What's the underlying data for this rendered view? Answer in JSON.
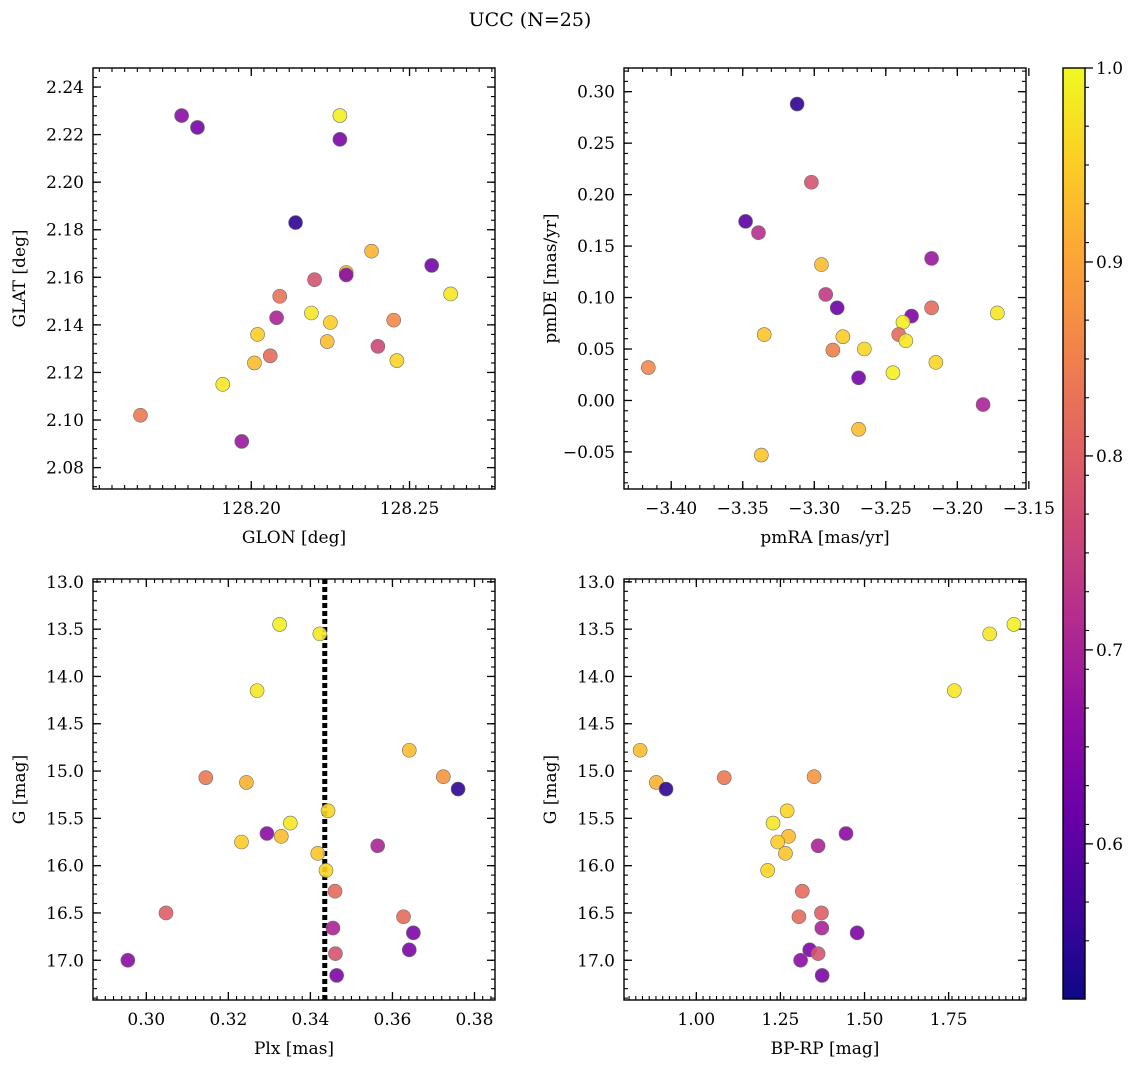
{
  "figure_title": "UCC (N=25)",
  "colorbar": {
    "vmin": 0.52,
    "vmax": 1.0,
    "ticks": [
      0.6,
      0.7,
      0.8,
      0.9,
      1.0
    ],
    "tick_labels": [
      "0.6",
      "0.7",
      "0.8",
      "0.9",
      "1.0"
    ],
    "colormap": "plasma"
  },
  "chart_data": [
    {
      "type": "scatter",
      "xlabel": "GLON [deg]",
      "ylabel": "GLAT [deg]",
      "xlim": [
        128.15,
        128.277
      ],
      "ylim": [
        2.071,
        2.248
      ],
      "xticks": [
        128.2,
        128.25
      ],
      "xtick_labels": [
        "128.20",
        "128.25"
      ],
      "yticks": [
        2.08,
        2.1,
        2.12,
        2.14,
        2.16,
        2.18,
        2.2,
        2.22,
        2.24
      ],
      "ytick_labels": [
        "2.08",
        "2.10",
        "2.12",
        "2.14",
        "2.16",
        "2.18",
        "2.20",
        "2.22",
        "2.24"
      ],
      "points": [
        {
          "x": 128.228,
          "y": 2.228,
          "c": 0.99
        },
        {
          "x": 128.178,
          "y": 2.228,
          "c": 0.66
        },
        {
          "x": 128.183,
          "y": 2.223,
          "c": 0.63
        },
        {
          "x": 128.228,
          "y": 2.218,
          "c": 0.64
        },
        {
          "x": 128.214,
          "y": 2.183,
          "c": 0.55
        },
        {
          "x": 128.238,
          "y": 2.171,
          "c": 0.92
        },
        {
          "x": 128.257,
          "y": 2.165,
          "c": 0.63
        },
        {
          "x": 128.23,
          "y": 2.162,
          "c": 0.93
        },
        {
          "x": 128.23,
          "y": 2.161,
          "c": 0.66
        },
        {
          "x": 128.22,
          "y": 2.159,
          "c": 0.78
        },
        {
          "x": 128.263,
          "y": 2.153,
          "c": 0.98
        },
        {
          "x": 128.209,
          "y": 2.152,
          "c": 0.83
        },
        {
          "x": 128.219,
          "y": 2.145,
          "c": 0.98
        },
        {
          "x": 128.208,
          "y": 2.143,
          "c": 0.7
        },
        {
          "x": 128.245,
          "y": 2.142,
          "c": 0.86
        },
        {
          "x": 128.225,
          "y": 2.141,
          "c": 0.95
        },
        {
          "x": 128.202,
          "y": 2.136,
          "c": 0.95
        },
        {
          "x": 128.224,
          "y": 2.133,
          "c": 0.93
        },
        {
          "x": 128.24,
          "y": 2.131,
          "c": 0.76
        },
        {
          "x": 128.206,
          "y": 2.127,
          "c": 0.82
        },
        {
          "x": 128.246,
          "y": 2.125,
          "c": 0.96
        },
        {
          "x": 128.201,
          "y": 2.124,
          "c": 0.93
        },
        {
          "x": 128.191,
          "y": 2.115,
          "c": 0.98
        },
        {
          "x": 128.165,
          "y": 2.102,
          "c": 0.84
        },
        {
          "x": 128.197,
          "y": 2.091,
          "c": 0.68
        }
      ]
    },
    {
      "type": "scatter",
      "xlabel": "pmRA [mas/yr]",
      "ylabel": "pmDE [mas/yr]",
      "xlim": [
        -3.433,
        -3.152
      ],
      "ylim": [
        -0.086,
        0.323
      ],
      "xticks": [
        -3.4,
        -3.35,
        -3.3,
        -3.25,
        -3.2,
        -3.15
      ],
      "xtick_labels": [
        "−3.40",
        "−3.35",
        "−3.30",
        "−3.25",
        "−3.20",
        "−3.15"
      ],
      "yticks": [
        -0.05,
        0.0,
        0.05,
        0.1,
        0.15,
        0.2,
        0.25,
        0.3
      ],
      "ytick_labels": [
        "−0.05",
        "0.00",
        "0.05",
        "0.10",
        "0.15",
        "0.20",
        "0.25",
        "0.30"
      ],
      "points": [
        {
          "x": -3.312,
          "y": 0.288,
          "c": 0.55
        },
        {
          "x": -3.302,
          "y": 0.212,
          "c": 0.78
        },
        {
          "x": -3.348,
          "y": 0.174,
          "c": 0.6
        },
        {
          "x": -3.339,
          "y": 0.163,
          "c": 0.72
        },
        {
          "x": -3.218,
          "y": 0.138,
          "c": 0.68
        },
        {
          "x": -3.295,
          "y": 0.132,
          "c": 0.93
        },
        {
          "x": -3.292,
          "y": 0.103,
          "c": 0.74
        },
        {
          "x": -3.218,
          "y": 0.09,
          "c": 0.82
        },
        {
          "x": -3.284,
          "y": 0.09,
          "c": 0.62
        },
        {
          "x": -3.172,
          "y": 0.085,
          "c": 0.98
        },
        {
          "x": -3.232,
          "y": 0.082,
          "c": 0.64
        },
        {
          "x": -3.238,
          "y": 0.076,
          "c": 0.99
        },
        {
          "x": -3.335,
          "y": 0.064,
          "c": 0.94
        },
        {
          "x": -3.241,
          "y": 0.064,
          "c": 0.82
        },
        {
          "x": -3.28,
          "y": 0.062,
          "c": 0.95
        },
        {
          "x": -3.236,
          "y": 0.058,
          "c": 0.98
        },
        {
          "x": -3.265,
          "y": 0.05,
          "c": 0.96
        },
        {
          "x": -3.287,
          "y": 0.049,
          "c": 0.85
        },
        {
          "x": -3.416,
          "y": 0.032,
          "c": 0.86
        },
        {
          "x": -3.215,
          "y": 0.037,
          "c": 0.96
        },
        {
          "x": -3.245,
          "y": 0.027,
          "c": 0.99
        },
        {
          "x": -3.269,
          "y": 0.022,
          "c": 0.63
        },
        {
          "x": -3.182,
          "y": -0.004,
          "c": 0.7
        },
        {
          "x": -3.269,
          "y": -0.028,
          "c": 0.93
        },
        {
          "x": -3.337,
          "y": -0.053,
          "c": 0.94
        }
      ]
    },
    {
      "type": "scatter",
      "xlabel": "Plx [mas]",
      "ylabel": "G [mag]",
      "y_inverted": true,
      "xlim": [
        0.287,
        0.385
      ],
      "ylim": [
        17.42,
        12.97
      ],
      "vline": {
        "x": 0.3435,
        "style": "dotted"
      },
      "xticks": [
        0.3,
        0.32,
        0.34,
        0.36,
        0.38
      ],
      "xtick_labels": [
        "0.30",
        "0.32",
        "0.34",
        "0.36",
        "0.38"
      ],
      "yticks": [
        13.0,
        13.5,
        14.0,
        14.5,
        15.0,
        15.5,
        16.0,
        16.5,
        17.0
      ],
      "ytick_labels": [
        "13.0",
        "13.5",
        "14.0",
        "14.5",
        "15.0",
        "15.5",
        "16.0",
        "16.5",
        "17.0"
      ],
      "points": [
        {
          "x": 0.3325,
          "y": 13.45,
          "c": 0.99
        },
        {
          "x": 0.3423,
          "y": 13.55,
          "c": 0.98
        },
        {
          "x": 0.327,
          "y": 14.15,
          "c": 0.98
        },
        {
          "x": 0.3641,
          "y": 14.78,
          "c": 0.93
        },
        {
          "x": 0.3145,
          "y": 15.07,
          "c": 0.84
        },
        {
          "x": 0.3724,
          "y": 15.06,
          "c": 0.88
        },
        {
          "x": 0.3244,
          "y": 15.12,
          "c": 0.92
        },
        {
          "x": 0.376,
          "y": 15.19,
          "c": 0.55
        },
        {
          "x": 0.3443,
          "y": 15.42,
          "c": 0.96
        },
        {
          "x": 0.3351,
          "y": 15.55,
          "c": 0.98
        },
        {
          "x": 0.3294,
          "y": 15.66,
          "c": 0.66
        },
        {
          "x": 0.3329,
          "y": 15.69,
          "c": 0.93
        },
        {
          "x": 0.3232,
          "y": 15.75,
          "c": 0.95
        },
        {
          "x": 0.3564,
          "y": 15.79,
          "c": 0.7
        },
        {
          "x": 0.3418,
          "y": 15.87,
          "c": 0.94
        },
        {
          "x": 0.3438,
          "y": 16.05,
          "c": 0.96
        },
        {
          "x": 0.346,
          "y": 16.27,
          "c": 0.82
        },
        {
          "x": 0.3048,
          "y": 16.5,
          "c": 0.8
        },
        {
          "x": 0.3627,
          "y": 16.54,
          "c": 0.82
        },
        {
          "x": 0.3455,
          "y": 16.66,
          "c": 0.7
        },
        {
          "x": 0.3651,
          "y": 16.71,
          "c": 0.64
        },
        {
          "x": 0.3641,
          "y": 16.89,
          "c": 0.64
        },
        {
          "x": 0.3461,
          "y": 16.93,
          "c": 0.78
        },
        {
          "x": 0.2955,
          "y": 17.0,
          "c": 0.66
        },
        {
          "x": 0.3464,
          "y": 17.16,
          "c": 0.64
        }
      ]
    },
    {
      "type": "scatter",
      "xlabel": "BP-RP [mag]",
      "ylabel": "G [mag]",
      "y_inverted": true,
      "xlim": [
        0.785,
        1.98
      ],
      "ylim": [
        17.42,
        12.97
      ],
      "xticks": [
        1.0,
        1.25,
        1.5,
        1.75
      ],
      "xtick_labels": [
        "1.00",
        "1.25",
        "1.50",
        "1.75"
      ],
      "yticks": [
        13.0,
        13.5,
        14.0,
        14.5,
        15.0,
        15.5,
        16.0,
        16.5,
        17.0
      ],
      "ytick_labels": [
        "13.0",
        "13.5",
        "14.0",
        "14.5",
        "15.0",
        "15.5",
        "16.0",
        "16.5",
        "17.0"
      ],
      "points": [
        {
          "x": 1.944,
          "y": 13.45,
          "c": 0.99
        },
        {
          "x": 1.872,
          "y": 13.55,
          "c": 0.98
        },
        {
          "x": 1.767,
          "y": 14.15,
          "c": 0.98
        },
        {
          "x": 0.833,
          "y": 14.78,
          "c": 0.93
        },
        {
          "x": 1.083,
          "y": 15.07,
          "c": 0.84
        },
        {
          "x": 1.35,
          "y": 15.06,
          "c": 0.88
        },
        {
          "x": 0.881,
          "y": 15.12,
          "c": 0.92
        },
        {
          "x": 0.91,
          "y": 15.19,
          "c": 0.55
        },
        {
          "x": 1.27,
          "y": 15.42,
          "c": 0.96
        },
        {
          "x": 1.228,
          "y": 15.55,
          "c": 0.98
        },
        {
          "x": 1.445,
          "y": 15.66,
          "c": 0.66
        },
        {
          "x": 1.274,
          "y": 15.69,
          "c": 0.93
        },
        {
          "x": 1.242,
          "y": 15.75,
          "c": 0.95
        },
        {
          "x": 1.362,
          "y": 15.79,
          "c": 0.7
        },
        {
          "x": 1.265,
          "y": 15.87,
          "c": 0.94
        },
        {
          "x": 1.212,
          "y": 16.05,
          "c": 0.96
        },
        {
          "x": 1.315,
          "y": 16.27,
          "c": 0.82
        },
        {
          "x": 1.372,
          "y": 16.5,
          "c": 0.8
        },
        {
          "x": 1.305,
          "y": 16.54,
          "c": 0.82
        },
        {
          "x": 1.373,
          "y": 16.66,
          "c": 0.7
        },
        {
          "x": 1.478,
          "y": 16.71,
          "c": 0.64
        },
        {
          "x": 1.337,
          "y": 16.89,
          "c": 0.64
        },
        {
          "x": 1.362,
          "y": 16.93,
          "c": 0.78
        },
        {
          "x": 1.31,
          "y": 17.0,
          "c": 0.66
        },
        {
          "x": 1.374,
          "y": 17.16,
          "c": 0.64
        }
      ]
    }
  ]
}
